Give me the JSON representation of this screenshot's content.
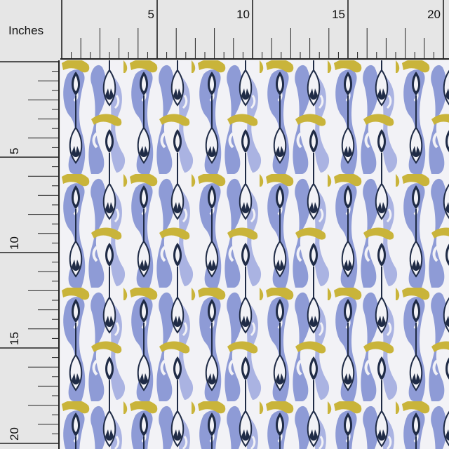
{
  "ruler": {
    "units_label": "Inches",
    "top_numbers": [
      "5",
      "10",
      "15",
      "20"
    ],
    "left_numbers": [
      "5",
      "10",
      "15",
      "20"
    ]
  },
  "fabric": {
    "colors": {
      "background": "#f2f2f6",
      "periwinkle": "#8e9bd6",
      "light_periwinkle": "#aab3e2",
      "navy": "#1f2b46",
      "mustard": "#c9b43a",
      "ruler_bg": "#e6e6e6",
      "ruler_line": "#222222"
    },
    "pattern": "ikat-feather-motif"
  }
}
